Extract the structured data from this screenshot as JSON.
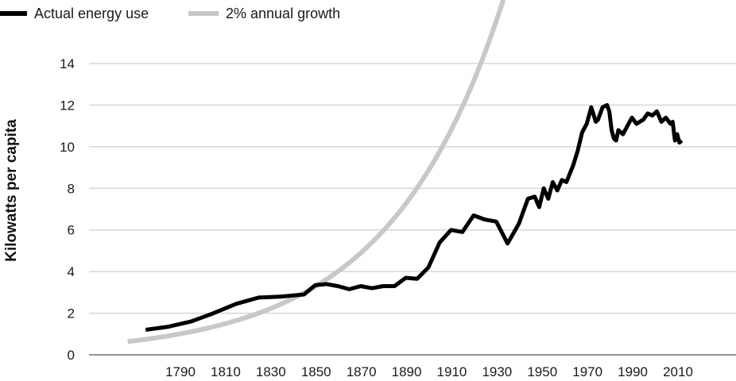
{
  "chart_data": {
    "type": "line",
    "title": "",
    "xlabel": "",
    "ylabel": "Kilowatts per capita",
    "xlim": [
      1766,
      2025
    ],
    "ylim": [
      0,
      14
    ],
    "x_ticks": [
      1790,
      1810,
      1830,
      1850,
      1870,
      1890,
      1910,
      1930,
      1950,
      1970,
      1990,
      2010
    ],
    "y_ticks": [
      0,
      2,
      4,
      6,
      8,
      10,
      12,
      14
    ],
    "grid": "horizontal",
    "legend": "top-left",
    "series": [
      {
        "name": "Actual energy use",
        "color": "#000000",
        "points": [
          [
            1775,
            1.2
          ],
          [
            1785,
            1.35
          ],
          [
            1795,
            1.6
          ],
          [
            1805,
            2.0
          ],
          [
            1815,
            2.45
          ],
          [
            1820,
            2.6
          ],
          [
            1825,
            2.75
          ],
          [
            1835,
            2.8
          ],
          [
            1845,
            2.9
          ],
          [
            1850,
            3.35
          ],
          [
            1855,
            3.4
          ],
          [
            1860,
            3.3
          ],
          [
            1865,
            3.15
          ],
          [
            1870,
            3.3
          ],
          [
            1875,
            3.2
          ],
          [
            1880,
            3.3
          ],
          [
            1885,
            3.3
          ],
          [
            1890,
            3.7
          ],
          [
            1895,
            3.65
          ],
          [
            1900,
            4.2
          ],
          [
            1905,
            5.4
          ],
          [
            1910,
            6.0
          ],
          [
            1915,
            5.9
          ],
          [
            1920,
            6.7
          ],
          [
            1925,
            6.5
          ],
          [
            1930,
            6.4
          ],
          [
            1935,
            5.35
          ],
          [
            1940,
            6.3
          ],
          [
            1944,
            7.5
          ],
          [
            1947,
            7.6
          ],
          [
            1949,
            7.1
          ],
          [
            1951,
            8.0
          ],
          [
            1953,
            7.5
          ],
          [
            1955,
            8.3
          ],
          [
            1957,
            7.9
          ],
          [
            1959,
            8.4
          ],
          [
            1961,
            8.3
          ],
          [
            1964,
            9.1
          ],
          [
            1966,
            9.8
          ],
          [
            1968,
            10.7
          ],
          [
            1970,
            11.1
          ],
          [
            1972,
            11.9
          ],
          [
            1974,
            11.2
          ],
          [
            1975,
            11.3
          ],
          [
            1977,
            11.9
          ],
          [
            1979,
            12.0
          ],
          [
            1980,
            11.7
          ],
          [
            1981,
            10.8
          ],
          [
            1982,
            10.4
          ],
          [
            1983,
            10.3
          ],
          [
            1984,
            10.8
          ],
          [
            1986,
            10.6
          ],
          [
            1988,
            11.0
          ],
          [
            1990,
            11.4
          ],
          [
            1992,
            11.1
          ],
          [
            1995,
            11.3
          ],
          [
            1997,
            11.6
          ],
          [
            1999,
            11.5
          ],
          [
            2001,
            11.7
          ],
          [
            2003,
            11.2
          ],
          [
            2005,
            11.4
          ],
          [
            2007,
            11.1
          ],
          [
            2008,
            11.2
          ],
          [
            2009,
            10.3
          ],
          [
            2010,
            10.6
          ],
          [
            2011,
            10.2
          ],
          [
            2012,
            10.3
          ]
        ]
      },
      {
        "name": "2% annual growth",
        "color": "#c8c8c8",
        "model": "exponential",
        "growth_rate": 0.02,
        "base": [
          1850,
          3.29
        ],
        "x_range": [
          1767,
          2025
        ]
      }
    ]
  }
}
